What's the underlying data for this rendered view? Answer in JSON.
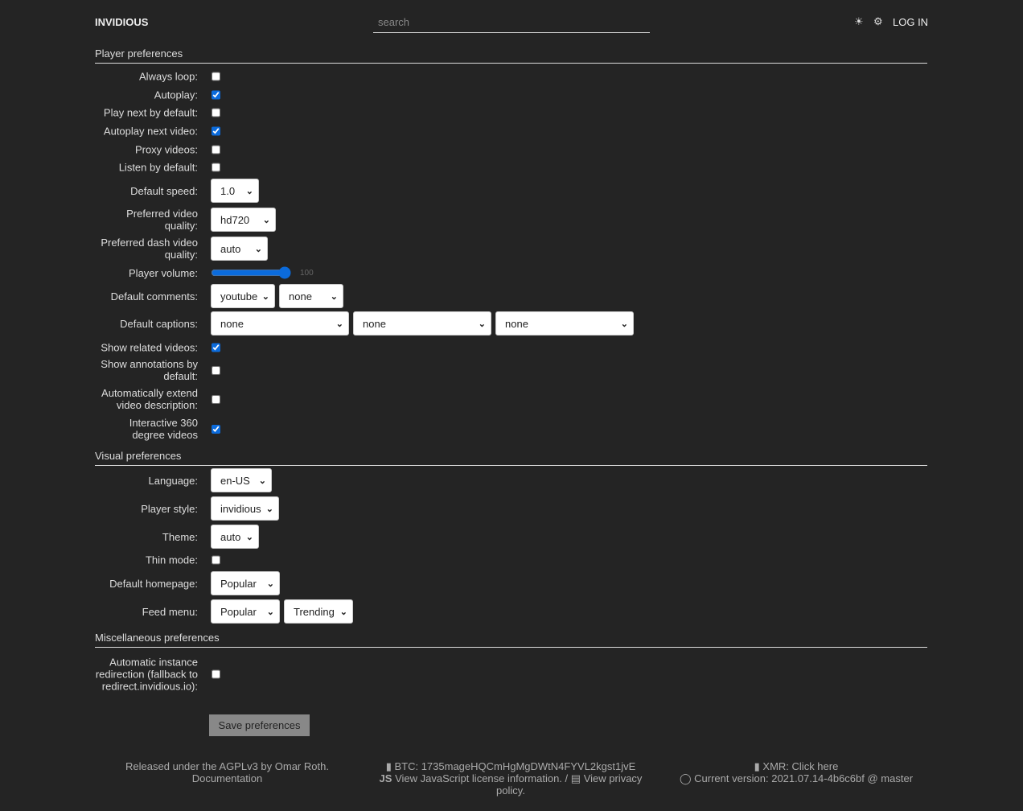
{
  "header": {
    "logo": "INVIDIOUS",
    "search_placeholder": "search",
    "theme_icon": "sun-icon",
    "settings_icon": "gear-icon",
    "login": "LOG IN"
  },
  "sections": {
    "player": "Player preferences",
    "visual": "Visual preferences",
    "misc": "Miscellaneous preferences"
  },
  "player": {
    "always_loop": {
      "label": "Always loop:",
      "checked": false
    },
    "autoplay": {
      "label": "Autoplay:",
      "checked": true
    },
    "play_next": {
      "label": "Play next by default:",
      "checked": false
    },
    "autoplay_next": {
      "label": "Autoplay next video:",
      "checked": true
    },
    "proxy": {
      "label": "Proxy videos:",
      "checked": false
    },
    "listen": {
      "label": "Listen by default:",
      "checked": false
    },
    "speed": {
      "label": "Default speed:",
      "value": "1.0"
    },
    "quality": {
      "label": "Preferred video quality:",
      "value": "hd720"
    },
    "dash_quality": {
      "label": "Preferred dash video quality:",
      "value": "auto"
    },
    "volume": {
      "label": "Player volume:",
      "value": "100"
    },
    "comments": {
      "label": "Default comments:",
      "values": [
        "youtube",
        "none"
      ]
    },
    "captions": {
      "label": "Default captions:",
      "values": [
        "none",
        "none",
        "none"
      ]
    },
    "related": {
      "label": "Show related videos:",
      "checked": true
    },
    "annotations": {
      "label": "Show annotations by default:",
      "checked": false
    },
    "extend_desc": {
      "label": "Automatically extend video description:",
      "checked": false
    },
    "vr360": {
      "label": "Interactive 360 degree videos",
      "checked": true
    }
  },
  "visual": {
    "language": {
      "label": "Language:",
      "value": "en-US"
    },
    "player_style": {
      "label": "Player style:",
      "value": "invidious"
    },
    "theme": {
      "label": "Theme:",
      "value": "auto"
    },
    "thin_mode": {
      "label": "Thin mode:",
      "checked": false
    },
    "homepage": {
      "label": "Default homepage:",
      "value": "Popular"
    },
    "feed_menu": {
      "label": "Feed menu:",
      "values": [
        "Popular",
        "Trending"
      ]
    }
  },
  "misc": {
    "redirect": {
      "label": "Automatic instance redirection (fallback to redirect.invidious.io):",
      "checked": false
    }
  },
  "save_label": "Save preferences",
  "footer": {
    "released": "Released under the AGPLv3 by Omar Roth.",
    "documentation": "Documentation",
    "btc": "BTC: 1735mageHQCmHgMgDWtN4FYVL2kgst1jvE",
    "js_license": "View JavaScript license information.",
    "separator": "/",
    "privacy": "View privacy policy.",
    "xmr": "XMR: Click here",
    "version": "Current version: 2021.07.14-4b6c6bf @ master"
  },
  "accent_color": "#0b6bdc"
}
